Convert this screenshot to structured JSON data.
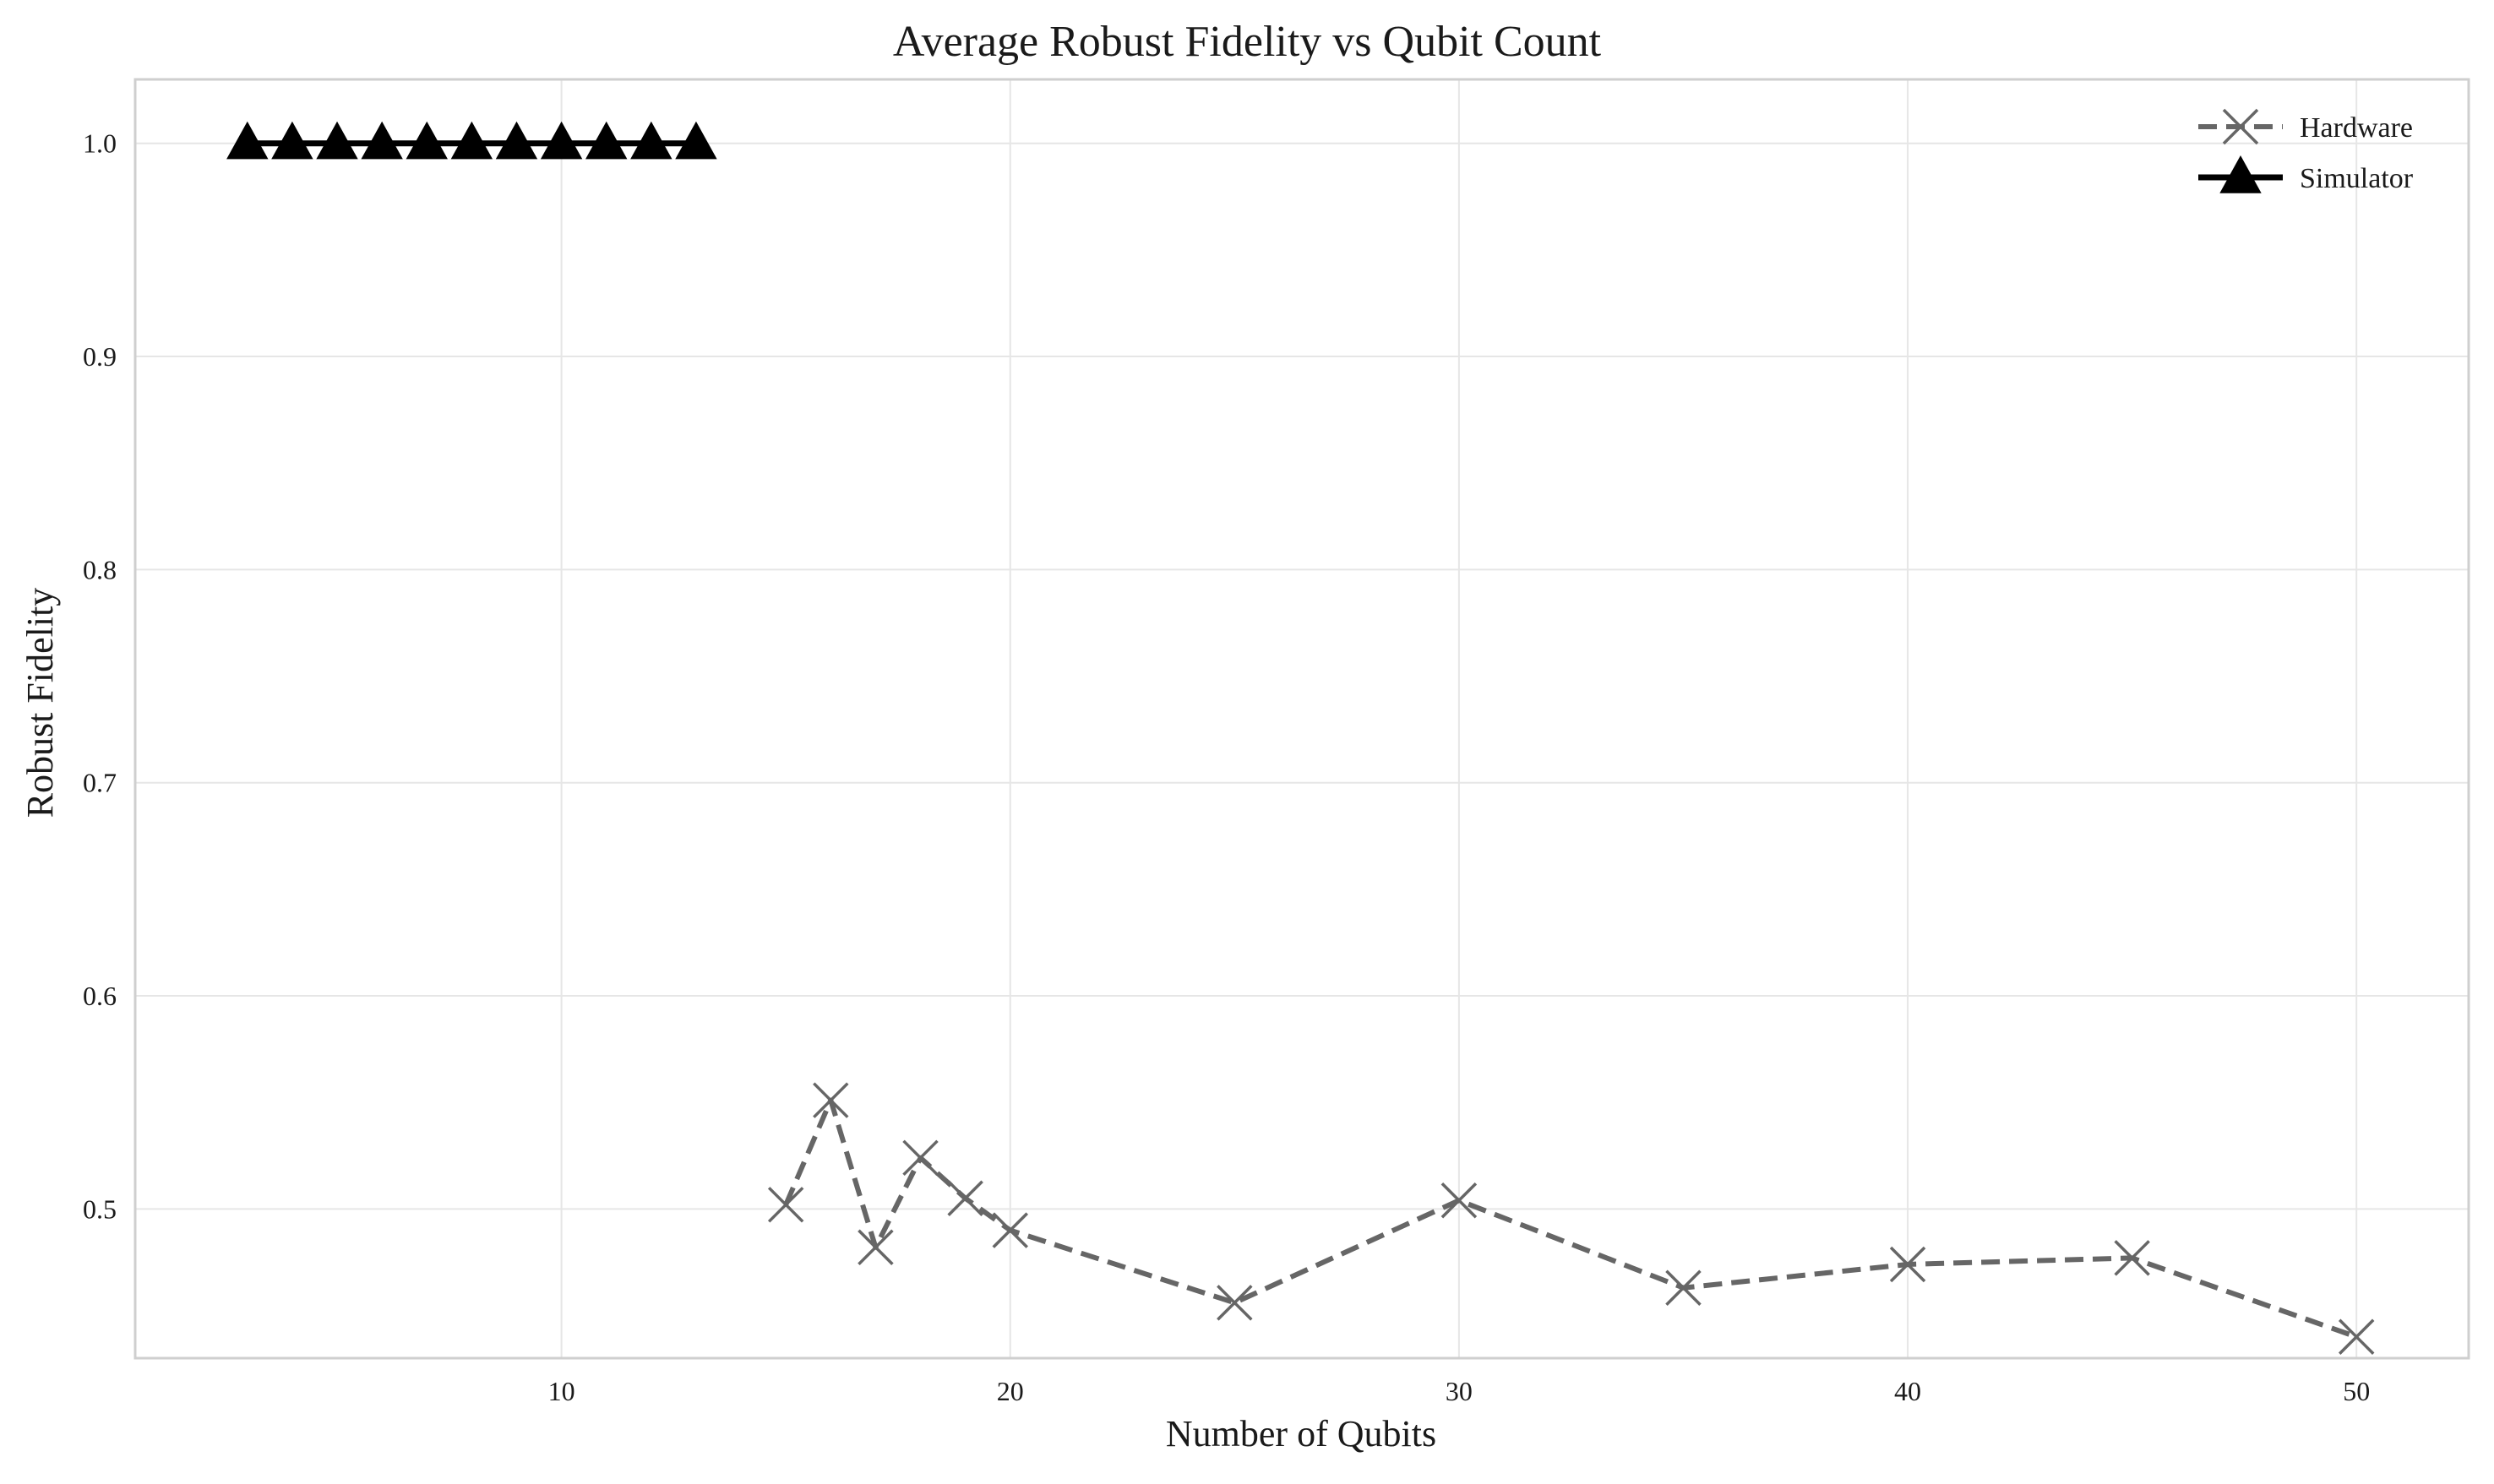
{
  "chart_data": {
    "type": "line",
    "title": "Average Robust Fidelity vs Qubit Count",
    "xlabel": "Number of Qubits",
    "ylabel": "Robust Fidelity",
    "xlim": [
      0.5,
      52.5
    ],
    "ylim": [
      0.43,
      1.03
    ],
    "x_ticks": [
      10,
      20,
      30,
      40,
      50
    ],
    "x_tick_labels": [
      "10",
      "20",
      "30",
      "40",
      "50"
    ],
    "y_ticks": [
      0.5,
      0.6,
      0.7,
      0.8,
      0.9,
      1.0
    ],
    "y_tick_labels": [
      "0.5",
      "0.6",
      "0.7",
      "0.8",
      "0.9",
      "1.0"
    ],
    "grid": true,
    "legend_position": "top-right",
    "series": [
      {
        "name": "Hardware",
        "color": "#666666",
        "line_style": "dashed",
        "marker": "x",
        "x": [
          15,
          16,
          17,
          18,
          19,
          20,
          25,
          30,
          35,
          40,
          45,
          50
        ],
        "y": [
          0.502,
          0.551,
          0.482,
          0.524,
          0.505,
          0.49,
          0.456,
          0.504,
          0.463,
          0.474,
          0.477,
          0.44
        ]
      },
      {
        "name": "Simulator",
        "color": "#000000",
        "line_style": "solid",
        "marker": "triangle",
        "x": [
          3,
          4,
          5,
          6,
          7,
          8,
          9,
          10,
          11,
          12,
          13
        ],
        "y": [
          1.0,
          1.0,
          1.0,
          1.0,
          1.0,
          1.0,
          1.0,
          1.0,
          1.0,
          1.0,
          1.0
        ]
      }
    ]
  }
}
